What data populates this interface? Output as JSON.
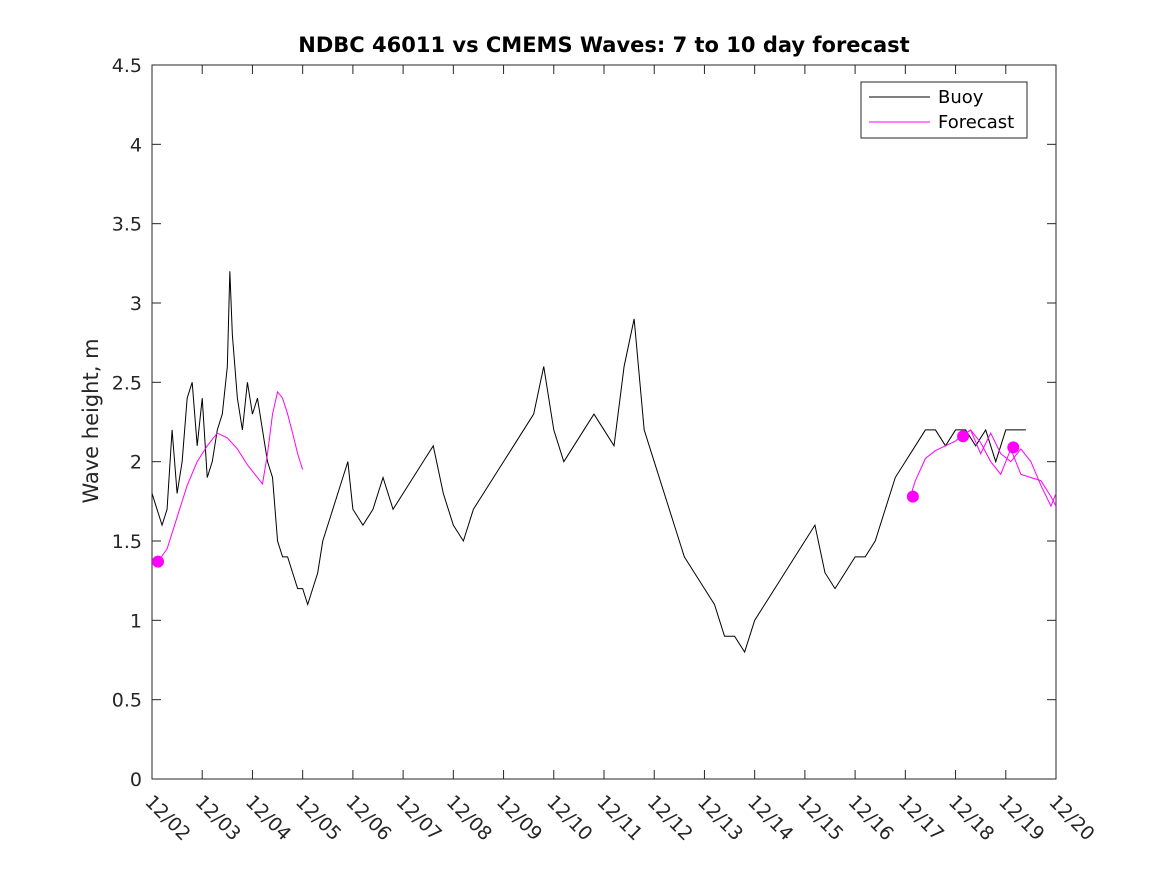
{
  "chart_data": {
    "type": "line",
    "title": "NDBC 46011 vs CMEMS Waves: 7 to 10 day forecast",
    "xlabel": "",
    "ylabel": "Wave height, m",
    "xlim": [
      0,
      18
    ],
    "ylim": [
      0,
      4.5
    ],
    "x_ticks": [
      0,
      1,
      2,
      3,
      4,
      5,
      6,
      7,
      8,
      9,
      10,
      11,
      12,
      13,
      14,
      15,
      16,
      17,
      18
    ],
    "x_tick_labels": [
      "12/02",
      "12/03",
      "12/04",
      "12/05",
      "12/06",
      "12/07",
      "12/08",
      "12/09",
      "12/10",
      "12/11",
      "12/12",
      "12/13",
      "12/14",
      "12/15",
      "12/16",
      "12/17",
      "12/18",
      "12/19",
      "12/20"
    ],
    "y_ticks": [
      0,
      0.5,
      1,
      1.5,
      2,
      2.5,
      3,
      3.5,
      4,
      4.5
    ],
    "y_tick_labels": [
      "0",
      "0.5",
      "1",
      "1.5",
      "2",
      "2.5",
      "3",
      "3.5",
      "4",
      "4.5"
    ],
    "legend_position": "top-right",
    "colors": {
      "buoy": "#000000",
      "forecast": "#ff00ff"
    },
    "series": [
      {
        "name": "Buoy",
        "x": [
          0,
          0.1,
          0.2,
          0.3,
          0.4,
          0.5,
          0.6,
          0.7,
          0.8,
          0.9,
          1.0,
          1.1,
          1.2,
          1.3,
          1.4,
          1.5,
          1.55,
          1.6,
          1.7,
          1.8,
          1.9,
          2.0,
          2.1,
          2.2,
          2.3,
          2.4,
          2.5,
          2.6,
          2.7,
          2.8,
          2.9,
          3.0,
          3.1,
          3.2,
          3.3,
          3.4,
          3.5,
          3.6,
          3.7,
          3.8,
          3.9,
          4.0,
          4.2,
          4.4,
          4.6,
          4.8,
          5.0,
          5.2,
          5.4,
          5.6,
          5.8,
          6.0,
          6.2,
          6.4,
          6.6,
          6.8,
          7.0,
          7.2,
          7.4,
          7.6,
          7.8,
          8.0,
          8.2,
          8.4,
          8.6,
          8.8,
          9.0,
          9.2,
          9.4,
          9.6,
          9.8,
          10.0,
          10.2,
          10.4,
          10.5,
          10.6,
          10.8,
          11.0,
          11.2,
          11.4,
          11.6,
          11.8,
          12.0,
          12.2,
          12.4,
          12.6,
          12.8,
          13.0,
          13.2,
          13.4,
          13.6,
          13.8,
          14.0,
          14.2,
          14.4,
          14.6,
          14.8,
          15.0,
          15.2,
          15.4,
          15.6,
          15.8,
          16.0,
          16.2,
          16.4,
          16.6,
          16.8,
          17.0,
          17.2,
          17.4
        ],
        "y": [
          1.8,
          1.7,
          1.6,
          1.7,
          2.2,
          1.8,
          2.0,
          2.4,
          2.5,
          2.1,
          2.4,
          1.9,
          2.0,
          2.2,
          2.3,
          2.6,
          3.2,
          2.8,
          2.4,
          2.2,
          2.5,
          2.3,
          2.4,
          2.2,
          2.0,
          1.9,
          1.5,
          1.4,
          1.4,
          1.3,
          1.2,
          1.2,
          1.1,
          1.2,
          1.3,
          1.5,
          1.6,
          1.7,
          1.8,
          1.9,
          2.0,
          1.7,
          1.6,
          1.7,
          1.9,
          1.7,
          1.8,
          1.9,
          2.0,
          2.1,
          1.8,
          1.6,
          1.5,
          1.7,
          1.8,
          1.9,
          2.0,
          2.1,
          2.2,
          2.3,
          2.6,
          2.2,
          2.0,
          2.1,
          2.2,
          2.3,
          2.2,
          2.1,
          2.6,
          2.9,
          2.2,
          2.0,
          1.8,
          1.6,
          1.5,
          1.4,
          1.3,
          1.2,
          1.1,
          0.9,
          0.9,
          0.8,
          1.0,
          1.1,
          1.2,
          1.3,
          1.4,
          1.5,
          1.6,
          1.3,
          1.2,
          1.3,
          1.4,
          1.4,
          1.5,
          1.7,
          1.9,
          2.0,
          2.1,
          2.2,
          2.2,
          2.1,
          2.2,
          2.2,
          2.1,
          2.2,
          2.0,
          2.2,
          2.2,
          2.2
        ]
      },
      {
        "name": "Forecast",
        "segments": [
          {
            "x": [
              0.12,
              0.3,
              0.5,
              0.7,
              0.9,
              1.1,
              1.3,
              1.5,
              1.7,
              1.9,
              2.1,
              2.2,
              2.3,
              2.4,
              2.5,
              2.6,
              2.7,
              2.8,
              2.9,
              3.0
            ],
            "y": [
              1.37,
              1.45,
              1.65,
              1.85,
              2.0,
              2.1,
              2.18,
              2.15,
              2.08,
              1.98,
              1.9,
              1.86,
              2.05,
              2.3,
              2.44,
              2.4,
              2.3,
              2.18,
              2.05,
              1.95
            ]
          },
          {
            "x": [
              15.1,
              15.2,
              15.4,
              15.6,
              15.8,
              16.0,
              16.1,
              16.3,
              16.5,
              16.7,
              16.9,
              17.1,
              17.3,
              17.5,
              17.7,
              17.9,
              18.0
            ],
            "y": [
              1.78,
              1.88,
              2.02,
              2.07,
              2.1,
              2.13,
              2.16,
              2.2,
              2.05,
              2.18,
              2.05,
              2.0,
              2.08,
              2.0,
              1.85,
              1.72,
              1.8
            ]
          },
          {
            "x": [
              16.1,
              16.3,
              16.5,
              16.7,
              16.9,
              17.1,
              17.3,
              17.5,
              17.7,
              17.9,
              18.0
            ],
            "y": [
              2.16,
              2.2,
              2.12,
              2.0,
              1.92,
              2.08,
              1.92,
              1.9,
              1.88,
              1.78,
              1.72
            ]
          }
        ],
        "markers": [
          {
            "x": 0.12,
            "y": 1.37
          },
          {
            "x": 15.15,
            "y": 1.78
          },
          {
            "x": 16.15,
            "y": 2.16
          },
          {
            "x": 17.15,
            "y": 2.09
          }
        ]
      }
    ]
  }
}
